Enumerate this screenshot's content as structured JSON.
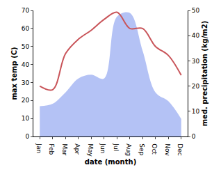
{
  "chart_data": {
    "type": "line",
    "x_label": "date (month)",
    "y_label": "max temp (C)",
    "y2_label": "med. precipitation (kg/m2)",
    "categories": [
      "Jan",
      "Feb",
      "Mar",
      "Apr",
      "May",
      "Jun",
      "Jul",
      "Aug",
      "Sep",
      "Oct",
      "Nov",
      "Dec"
    ],
    "series": [
      {
        "name": "max temp",
        "type": "line",
        "line_style": "smooth",
        "color": "#c9555a",
        "values": [
          28,
          26,
          46,
          54,
          59,
          65,
          69,
          60,
          60,
          50,
          45,
          34
        ]
      },
      {
        "name": "med. precipitation",
        "type": "area",
        "axis": "y2",
        "color": "#b4c2f5",
        "values": [
          12,
          13,
          17.5,
          23,
          24.5,
          23,
          47.5,
          49,
          34,
          17.5,
          14,
          7
        ]
      }
    ],
    "ylim": [
      0,
      70
    ],
    "yticks": [
      0,
      10,
      20,
      30,
      40,
      50,
      60,
      70
    ],
    "y2lim": [
      0,
      50
    ],
    "y2ticks": [
      0,
      10,
      20,
      30,
      40,
      50
    ],
    "grid": false
  }
}
